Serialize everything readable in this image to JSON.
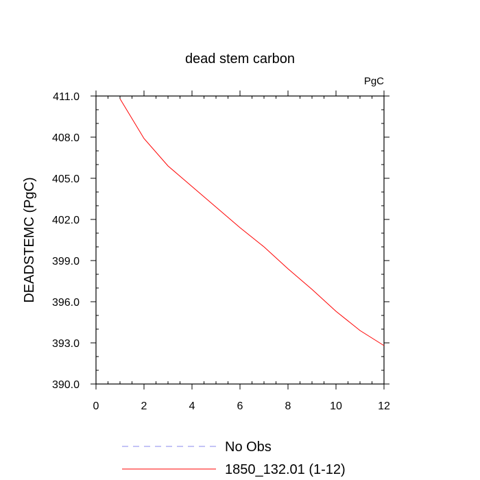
{
  "chart_data": {
    "type": "line",
    "title": "dead stem carbon",
    "units_label": "PgC",
    "ylabel": "DEADSTEMC  (PgC)",
    "xlabel": "",
    "xlim": [
      0,
      12
    ],
    "ylim": [
      390.0,
      411.0
    ],
    "x_ticks": [
      0,
      2,
      4,
      6,
      8,
      10,
      12
    ],
    "x_tick_labels": [
      "0",
      "2",
      "4",
      "6",
      "8",
      "10",
      "12"
    ],
    "y_ticks": [
      390,
      393,
      396,
      399,
      402,
      405,
      408,
      411
    ],
    "y_tick_labels": [
      "390.0",
      "393.0",
      "396.0",
      "399.0",
      "402.0",
      "405.0",
      "408.0",
      "411.0"
    ],
    "grid": false,
    "legend_position": "bottom",
    "series": [
      {
        "name": "No Obs",
        "color": "#8888ee",
        "style": "dashed",
        "x": [],
        "values": []
      },
      {
        "name": "1850_132.01 (1-12)",
        "color": "#ff0000",
        "style": "solid",
        "x": [
          1,
          2,
          3,
          4,
          5,
          6,
          7,
          8,
          9,
          10,
          11,
          12
        ],
        "values": [
          410.8,
          407.9,
          405.9,
          404.4,
          402.9,
          401.4,
          400.0,
          398.4,
          396.9,
          395.3,
          393.9,
          392.8
        ]
      }
    ]
  }
}
